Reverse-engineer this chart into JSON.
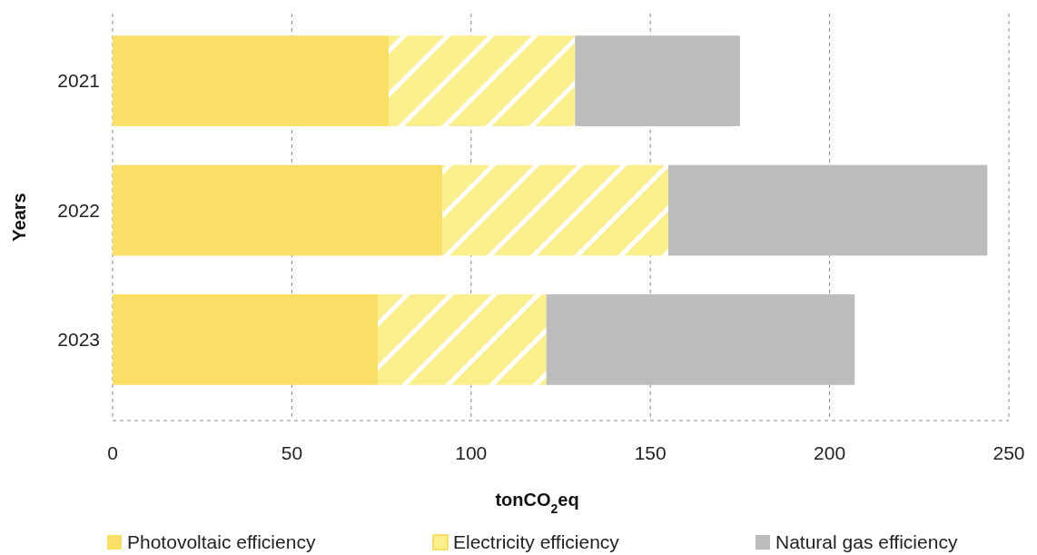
{
  "chart_data": {
    "type": "bar",
    "orientation": "horizontal",
    "stacked": true,
    "ylabel": "Years",
    "xlabel": "tonCO$_{2}$eq",
    "categories": [
      "2021",
      "2022",
      "2023"
    ],
    "series": [
      {
        "name": "Photovoltaic efficiency",
        "color": "#f9df66",
        "values": [
          77,
          92,
          74
        ]
      },
      {
        "name": "Electricity efficiency",
        "color": "#fbef8c",
        "values": [
          52,
          63,
          47
        ]
      },
      {
        "name": "Natural gas efficiency",
        "color": "#bcbcbc",
        "values": [
          46,
          89,
          86
        ]
      }
    ],
    "xlim": [
      0,
      250
    ],
    "xticks": [
      0,
      50,
      100,
      150,
      200,
      250
    ],
    "grid": "x",
    "legend": "bottom"
  }
}
